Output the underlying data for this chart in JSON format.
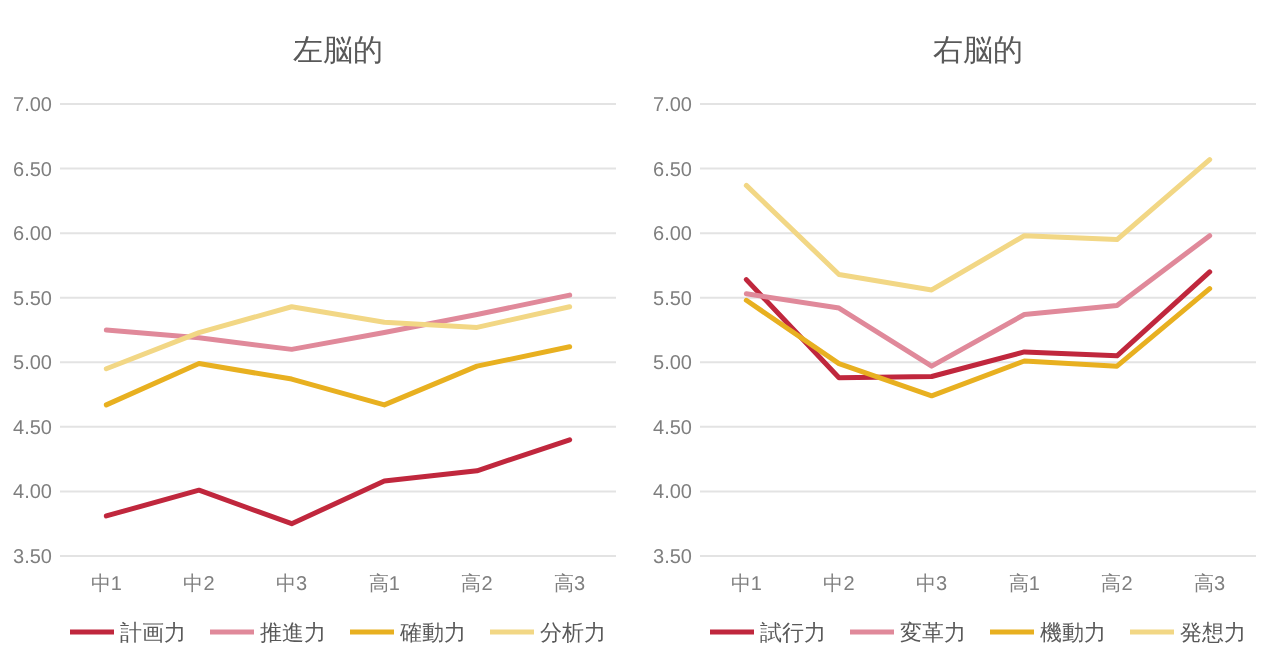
{
  "chart_data": [
    {
      "type": "line",
      "title": "左脳的",
      "categories": [
        "中1",
        "中2",
        "中3",
        "高1",
        "高2",
        "高3"
      ],
      "series": [
        {
          "name": "計画力",
          "color": "#c0273d",
          "values": [
            3.81,
            4.01,
            3.75,
            4.08,
            4.16,
            4.4
          ]
        },
        {
          "name": "推進力",
          "color": "#e0899a",
          "values": [
            5.25,
            5.19,
            5.1,
            5.23,
            5.37,
            5.52
          ]
        },
        {
          "name": "確動力",
          "color": "#e8b020",
          "values": [
            4.67,
            4.99,
            4.87,
            4.67,
            4.97,
            5.12
          ]
        },
        {
          "name": "分析力",
          "color": "#f2d785",
          "values": [
            4.95,
            5.23,
            5.43,
            5.31,
            5.27,
            5.43
          ]
        }
      ],
      "ylim": [
        3.5,
        7
      ],
      "yticks": [
        {
          "value": 3.5,
          "label": "3.50"
        },
        {
          "value": 4,
          "label": "4.00"
        },
        {
          "value": 4.5,
          "label": "4.50"
        },
        {
          "value": 5,
          "label": "5.00"
        },
        {
          "value": 5.5,
          "label": "5.50"
        },
        {
          "value": 6,
          "label": "6.00"
        },
        {
          "value": 6.5,
          "label": "6.50"
        },
        {
          "value": 7,
          "label": "7.00"
        }
      ],
      "grid": "y",
      "legend": "bottom",
      "marker": "none",
      "line_style": "solid"
    },
    {
      "type": "line",
      "title": "右脳的",
      "categories": [
        "中1",
        "中2",
        "中3",
        "高1",
        "高2",
        "高3"
      ],
      "series": [
        {
          "name": "試行力",
          "color": "#c0273d",
          "values": [
            5.64,
            4.88,
            4.89,
            5.08,
            5.05,
            5.7
          ]
        },
        {
          "name": "変革力",
          "color": "#e0899a",
          "values": [
            5.53,
            5.42,
            4.97,
            5.37,
            5.44,
            5.98
          ]
        },
        {
          "name": "機動力",
          "color": "#e8b020",
          "values": [
            5.48,
            4.99,
            4.74,
            5.01,
            4.97,
            5.57
          ]
        },
        {
          "name": "発想力",
          "color": "#f2d785",
          "values": [
            6.37,
            5.68,
            5.56,
            5.98,
            5.95,
            6.57
          ]
        }
      ],
      "ylim": [
        3.5,
        7
      ],
      "yticks": [
        {
          "value": 3.5,
          "label": "3.50"
        },
        {
          "value": 4,
          "label": "4.00"
        },
        {
          "value": 4.5,
          "label": "4.50"
        },
        {
          "value": 5,
          "label": "5.00"
        },
        {
          "value": 5.5,
          "label": "5.50"
        },
        {
          "value": 6,
          "label": "6.00"
        },
        {
          "value": 6.5,
          "label": "6.50"
        },
        {
          "value": 7,
          "label": "7.00"
        }
      ],
      "grid": "y",
      "legend": "bottom",
      "marker": "none",
      "line_style": "solid"
    }
  ]
}
